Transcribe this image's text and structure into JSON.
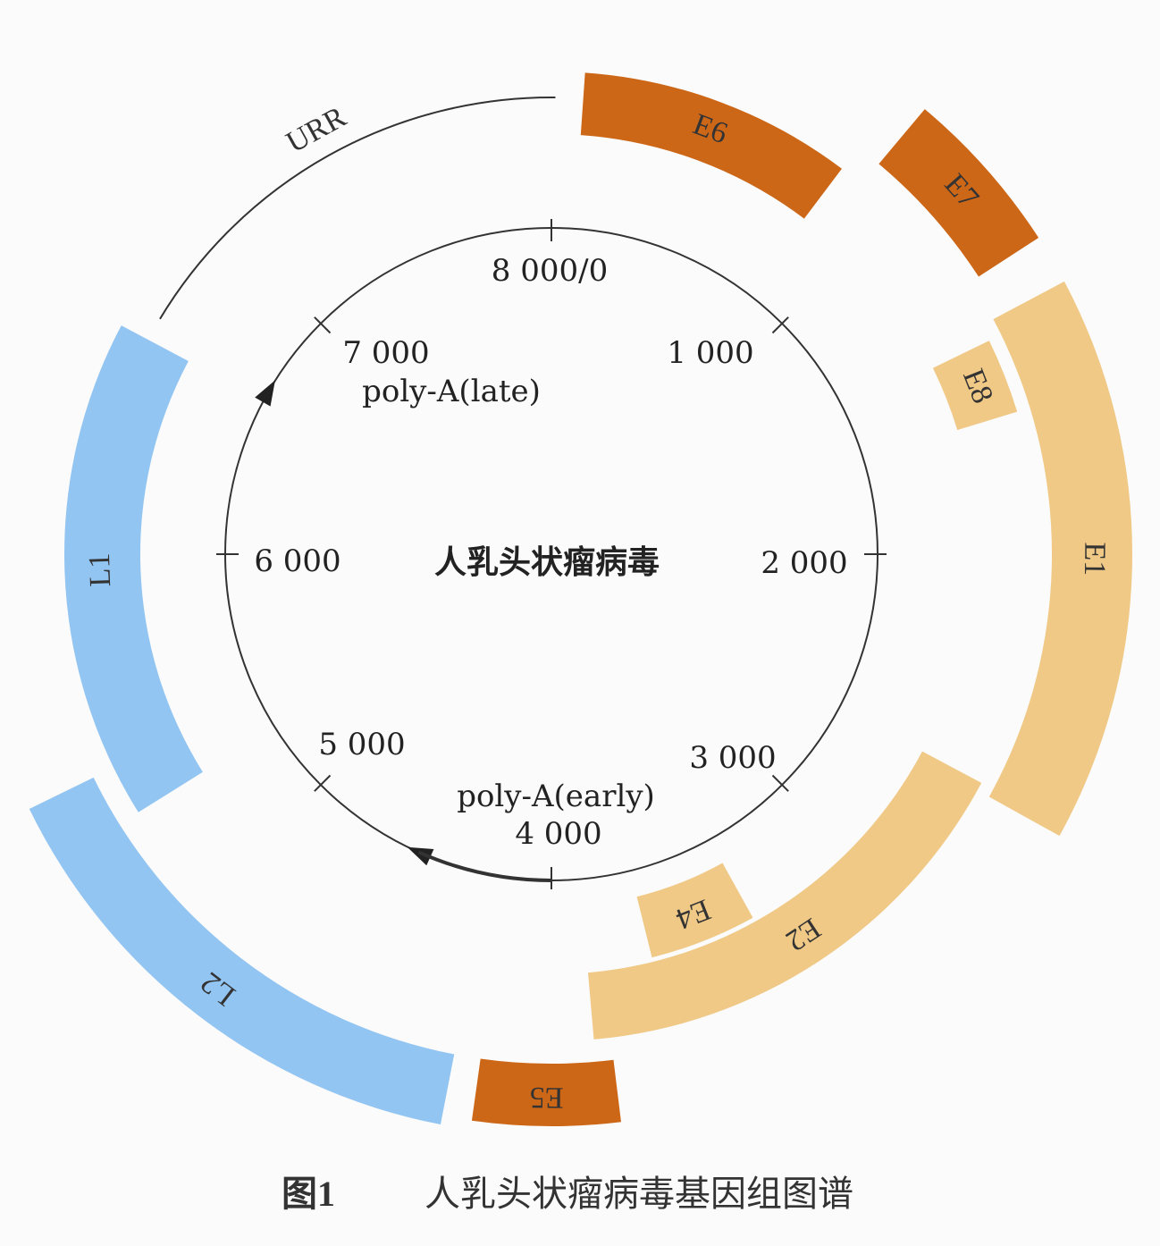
{
  "center_label": "人乳头状瘤病毒",
  "scale_labels": [
    "8 000/0",
    "1 000",
    "2 000",
    "3 000",
    "4 000",
    "5 000",
    "6 000",
    "7 000"
  ],
  "poly_a": [
    "poly-A(late)",
    "poly-A(early)"
  ],
  "urr": "URR",
  "genes": [
    {
      "label": "E6"
    },
    {
      "label": "E7"
    },
    {
      "label": "E8"
    },
    {
      "label": "E1"
    },
    {
      "label": "E2"
    },
    {
      "label": "E4"
    },
    {
      "label": "E5"
    },
    {
      "label": "L2"
    },
    {
      "label": "L1"
    }
  ],
  "caption": {
    "label": "图1",
    "text": "人乳头状瘤病毒基因组图谱"
  }
}
